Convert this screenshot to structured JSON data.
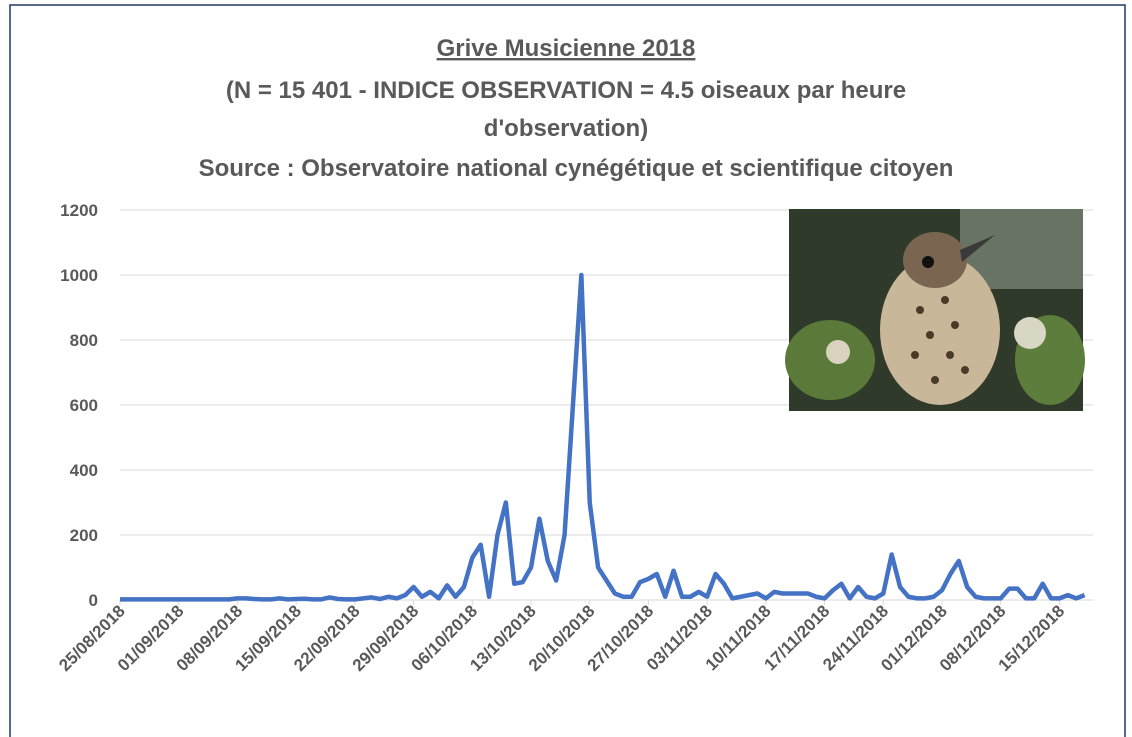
{
  "chart_data": {
    "type": "line",
    "title": "Grive Musicienne 2018",
    "subtitle": [
      "(N = 15 401 - INDICE OBSERVATION = 4.5 oiseaux par heure",
      "d'observation)"
    ],
    "source": "Source : Observatoire national cynégétique et scientifique citoyen",
    "x": [
      "25/08/2018",
      "26/08/2018",
      "27/08/2018",
      "28/08/2018",
      "29/08/2018",
      "30/08/2018",
      "31/08/2018",
      "01/09/2018",
      "02/09/2018",
      "03/09/2018",
      "04/09/2018",
      "05/09/2018",
      "06/09/2018",
      "07/09/2018",
      "08/09/2018",
      "09/09/2018",
      "10/09/2018",
      "11/09/2018",
      "12/09/2018",
      "13/09/2018",
      "14/09/2018",
      "15/09/2018",
      "16/09/2018",
      "17/09/2018",
      "18/09/2018",
      "19/09/2018",
      "20/09/2018",
      "21/09/2018",
      "22/09/2018",
      "23/09/2018",
      "24/09/2018",
      "25/09/2018",
      "26/09/2018",
      "27/09/2018",
      "28/09/2018",
      "29/09/2018",
      "30/09/2018",
      "01/10/2018",
      "02/10/2018",
      "03/10/2018",
      "04/10/2018",
      "05/10/2018",
      "06/10/2018",
      "07/10/2018",
      "08/10/2018",
      "09/10/2018",
      "10/10/2018",
      "11/10/2018",
      "12/10/2018",
      "13/10/2018",
      "14/10/2018",
      "15/10/2018",
      "16/10/2018",
      "17/10/2018",
      "18/10/2018",
      "19/10/2018",
      "20/10/2018",
      "21/10/2018",
      "22/10/2018",
      "23/10/2018",
      "24/10/2018",
      "25/10/2018",
      "26/10/2018",
      "27/10/2018",
      "28/10/2018",
      "29/10/2018",
      "30/10/2018",
      "31/10/2018",
      "01/11/2018",
      "02/11/2018",
      "03/11/2018",
      "04/11/2018",
      "05/11/2018",
      "06/11/2018",
      "07/11/2018",
      "08/11/2018",
      "09/11/2018",
      "10/11/2018",
      "11/11/2018",
      "12/11/2018",
      "13/11/2018",
      "14/11/2018",
      "15/11/2018",
      "16/11/2018",
      "17/11/2018",
      "18/11/2018",
      "19/11/2018",
      "20/11/2018",
      "21/11/2018",
      "22/11/2018",
      "23/11/2018",
      "24/11/2018",
      "25/11/2018",
      "26/11/2018",
      "27/11/2018",
      "28/11/2018",
      "29/11/2018",
      "30/11/2018",
      "01/12/2018",
      "02/12/2018",
      "03/12/2018",
      "04/12/2018",
      "05/12/2018",
      "06/12/2018",
      "07/12/2018",
      "08/12/2018",
      "09/12/2018",
      "10/12/2018",
      "11/12/2018",
      "12/12/2018",
      "13/12/2018",
      "14/12/2018",
      "15/12/2018",
      "16/12/2018",
      "17/12/2018",
      "18/12/2018"
    ],
    "series": [
      {
        "color": "#4472c4",
        "values": [
          2,
          2,
          2,
          2,
          2,
          2,
          2,
          2,
          2,
          2,
          2,
          2,
          2,
          2,
          5,
          5,
          3,
          2,
          2,
          5,
          2,
          3,
          4,
          2,
          2,
          8,
          3,
          2,
          2,
          5,
          8,
          3,
          10,
          5,
          15,
          40,
          10,
          25,
          5,
          45,
          10,
          40,
          130,
          170,
          10,
          200,
          300,
          50,
          55,
          100,
          250,
          120,
          60,
          200,
          600,
          1000,
          300,
          100,
          60,
          20,
          10,
          10,
          55,
          65,
          80,
          10,
          90,
          10,
          10,
          25,
          10,
          80,
          50,
          5,
          10,
          15,
          20,
          5,
          25,
          20,
          20,
          20,
          20,
          10,
          5,
          30,
          50,
          5,
          40,
          10,
          5,
          20,
          140,
          40,
          10,
          5,
          5,
          10,
          30,
          80,
          120,
          40,
          10,
          5,
          5,
          5,
          35,
          35,
          5,
          5,
          50,
          5,
          5,
          15,
          5,
          15
        ]
      }
    ],
    "xlim": [
      "25/08/2018",
      "19/12/2018"
    ],
    "xticks": [
      "25/08/2018",
      "01/09/2018",
      "08/09/2018",
      "15/09/2018",
      "22/09/2018",
      "29/09/2018",
      "06/10/2018",
      "13/10/2018",
      "20/10/2018",
      "27/10/2018",
      "03/11/2018",
      "10/11/2018",
      "17/11/2018",
      "24/11/2018",
      "01/12/2018",
      "08/12/2018",
      "15/12/2018"
    ],
    "ylim": [
      0,
      1200
    ],
    "yticks": [
      0,
      200,
      400,
      600,
      800,
      1000,
      1200
    ],
    "grid": true
  }
}
